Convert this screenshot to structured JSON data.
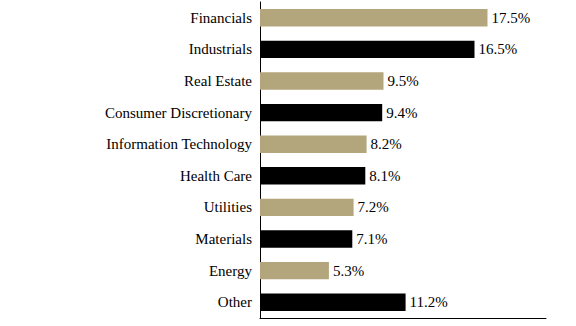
{
  "chart_data": {
    "type": "bar",
    "orientation": "horizontal",
    "categories": [
      "Financials",
      "Industrials",
      "Real Estate",
      "Consumer Discretionary",
      "Information Technology",
      "Health Care",
      "Utilities",
      "Materials",
      "Energy",
      "Other"
    ],
    "values": [
      17.5,
      16.5,
      9.5,
      9.4,
      8.2,
      8.1,
      7.2,
      7.1,
      5.3,
      11.2
    ],
    "value_labels": [
      "17.5%",
      "16.5%",
      "9.5%",
      "9.4%",
      "8.2%",
      "8.1%",
      "7.2%",
      "7.1%",
      "5.3%",
      "11.2%"
    ],
    "colors": [
      "#b3a57c",
      "#000000",
      "#b3a57c",
      "#000000",
      "#b3a57c",
      "#000000",
      "#b3a57c",
      "#000000",
      "#b3a57c",
      "#000000"
    ],
    "xlim": [
      0,
      22
    ],
    "data_labels": true,
    "tick_labels": "y",
    "grid": false
  }
}
